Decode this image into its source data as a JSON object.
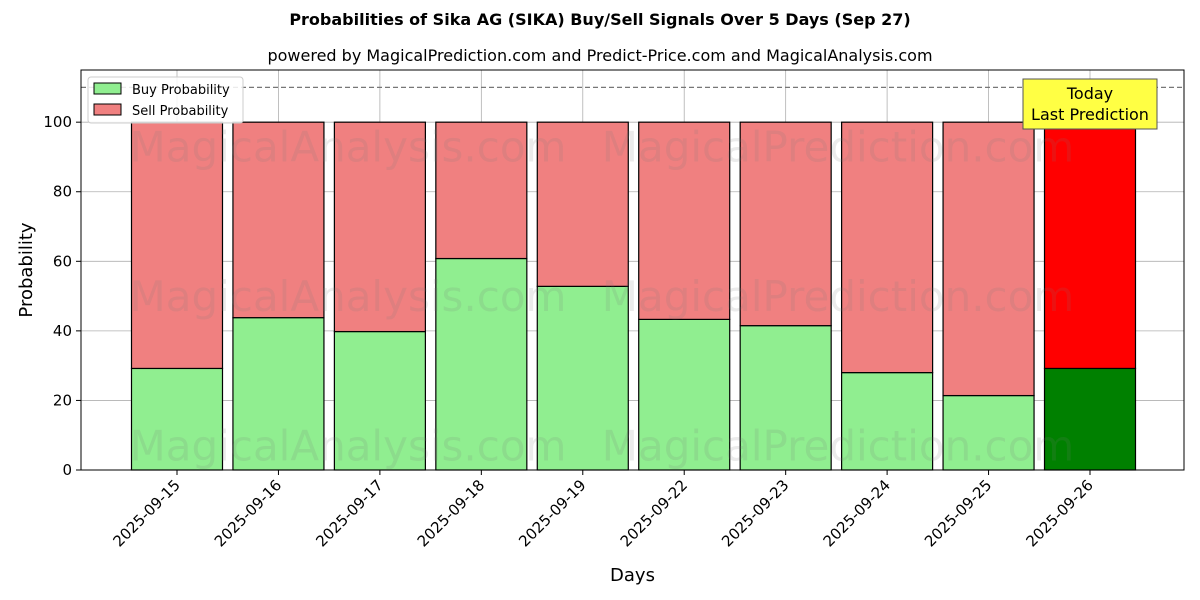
{
  "chart_data": {
    "type": "bar",
    "stacked": true,
    "title": "Probabilities of Sika AG (SIKA) Buy/Sell Signals Over 5 Days (Sep 27)",
    "subtitle": "powered by MagicalPrediction.com and Predict-Price.com and MagicalAnalysis.com",
    "xlabel": "Days",
    "ylabel": "Probability",
    "ylim": [
      0,
      115
    ],
    "yticks": [
      0,
      20,
      40,
      60,
      80,
      100
    ],
    "reference_line": 110,
    "grid": true,
    "legend_position": "top-left",
    "categories": [
      "2025-09-15",
      "2025-09-16",
      "2025-09-17",
      "2025-09-18",
      "2025-09-19",
      "2025-09-22",
      "2025-09-23",
      "2025-09-24",
      "2025-09-25",
      "2025-09-26"
    ],
    "series": [
      {
        "name": "Buy Probability",
        "values": [
          29.2,
          43.8,
          39.8,
          60.8,
          52.8,
          43.3,
          41.5,
          28.0,
          21.4,
          29.2
        ],
        "color": "#90ee90",
        "highlight_color": "#008000"
      },
      {
        "name": "Sell Probability",
        "values": [
          70.8,
          56.2,
          60.2,
          39.2,
          47.2,
          56.7,
          58.5,
          72.0,
          78.6,
          70.8
        ],
        "color": "#f08080",
        "highlight_color": "#ff0000"
      }
    ],
    "highlight_index": 9,
    "annotation": {
      "line1": "Today",
      "line2": "Last Prediction",
      "color": "#ffff44"
    },
    "watermarks": [
      "MagicalAnalysis.com",
      "MagicalPrediction.com"
    ]
  }
}
